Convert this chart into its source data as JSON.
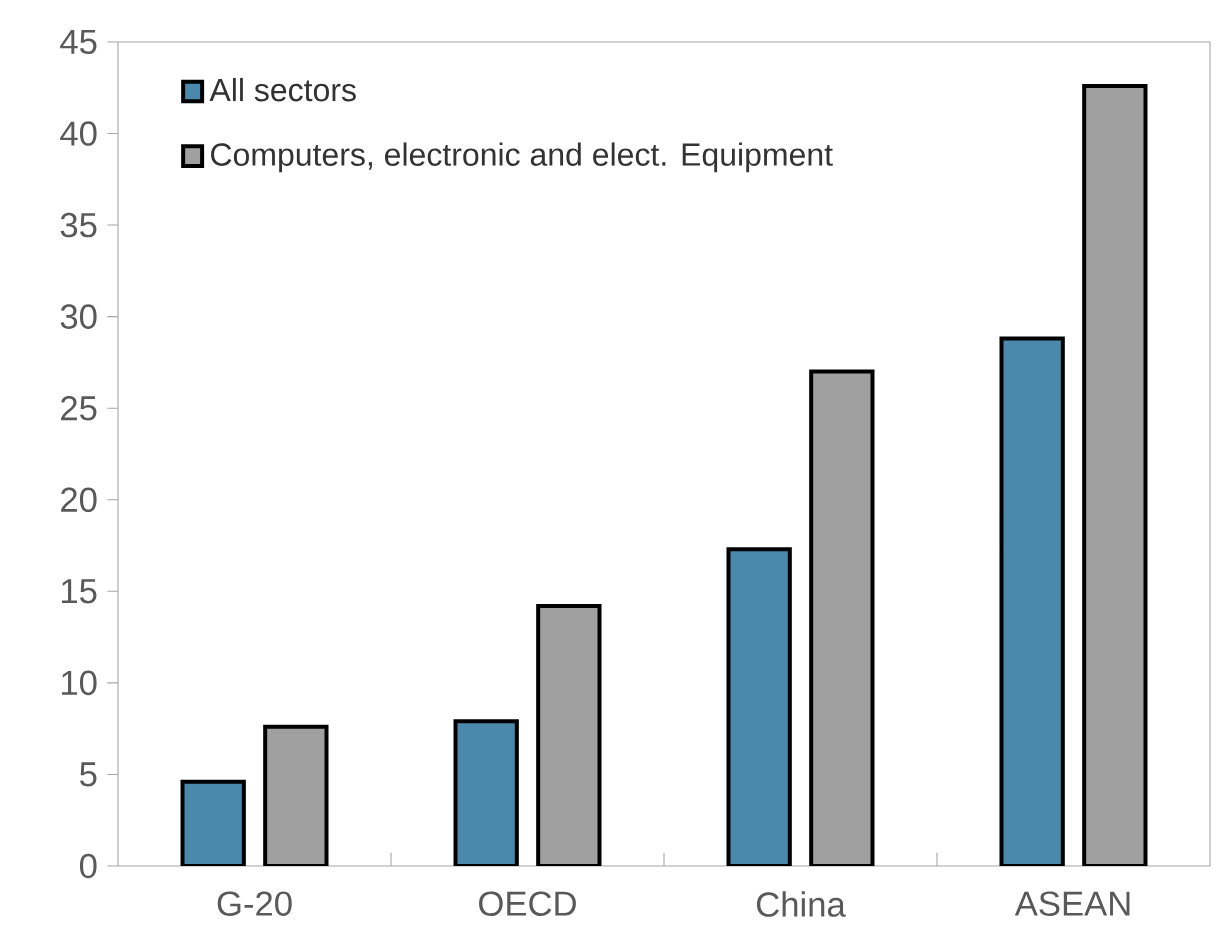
{
  "chart_data": {
    "type": "bar",
    "categories": [
      "G-20",
      "OECD",
      "China",
      "ASEAN"
    ],
    "series": [
      {
        "name": "All sectors",
        "color": "#4a89ac",
        "values": [
          4.6,
          7.9,
          17.3,
          28.8
        ]
      },
      {
        "name": "Computers, electronic and elect. Equipment",
        "color": "#a0a0a0",
        "values": [
          7.6,
          14.2,
          27.0,
          42.6
        ]
      }
    ],
    "ylim": [
      0,
      45
    ],
    "yticks": [
      0,
      5,
      10,
      15,
      20,
      25,
      30,
      35,
      40,
      45
    ],
    "grid": false,
    "legend": "top left"
  }
}
